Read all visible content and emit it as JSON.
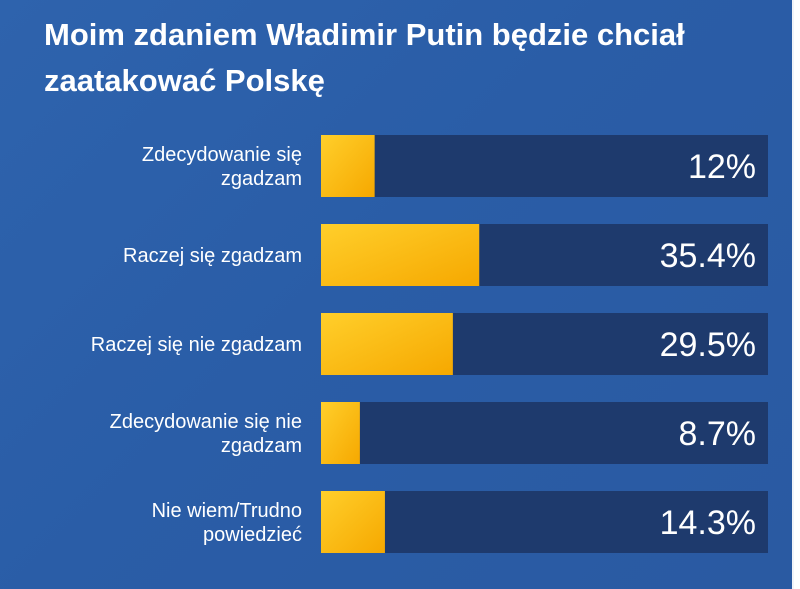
{
  "chart_data": {
    "type": "bar",
    "orientation": "horizontal",
    "title": "Moim zdaniem Władimir Putin będzie chciał zaatakować Polskę",
    "categories": [
      [
        "Zdecydowanie się",
        "zgadzam"
      ],
      [
        "Raczej się zgadzam"
      ],
      [
        "Raczej się nie zgadzam"
      ],
      [
        "Zdecydowanie się nie",
        "zgadzam"
      ],
      [
        "Nie wiem/Trudno",
        "powiedzieć"
      ]
    ],
    "values": [
      12,
      35.4,
      29.5,
      8.7,
      14.3
    ],
    "value_labels": [
      "12%",
      "35.4%",
      "29.5%",
      "8.7%",
      "14.3%"
    ],
    "xlim": [
      0,
      100
    ],
    "unit": "%",
    "grid": false,
    "legend": "none"
  },
  "colors": {
    "background": "#2c5faa",
    "track": "#1e3a6d",
    "bar_light": "#ffcf2b",
    "bar_dark": "#f6a800",
    "text": "#ffffff"
  }
}
